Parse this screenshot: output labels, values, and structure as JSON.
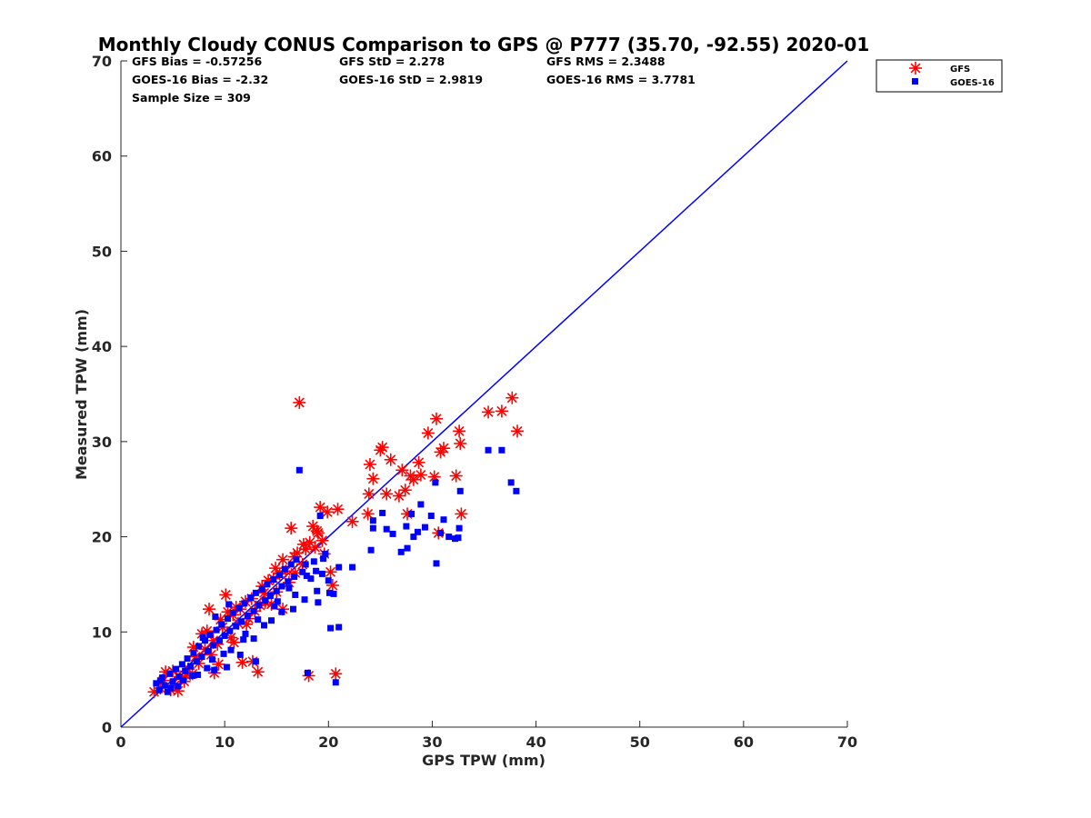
{
  "chart_data": {
    "type": "scatter",
    "title": "Monthly Cloudy CONUS Comparison to GPS @ P777 (35.70, -92.55) 2020-01",
    "xlabel": "GPS TPW (mm)",
    "ylabel": "Measured TPW (mm)",
    "xlim": [
      0,
      70
    ],
    "ylim": [
      0,
      70
    ],
    "xticks": [
      0,
      10,
      20,
      30,
      40,
      50,
      60,
      70
    ],
    "yticks": [
      0,
      10,
      20,
      30,
      40,
      50,
      60,
      70
    ],
    "grid": false,
    "legend_position": "top-right-outside",
    "stats": {
      "gfs_bias": "GFS Bias = -0.57256",
      "gfs_std": "GFS StD = 2.278",
      "gfs_rms": "GFS RMS = 2.3488",
      "goes_bias": "GOES-16 Bias = -2.32",
      "goes_std": "GOES-16 StD = 2.9819",
      "goes_rms": "GOES-16 RMS = 3.7781",
      "sample_size": "Sample Size = 309"
    },
    "reference_line": {
      "name": "1:1",
      "x": [
        0,
        70
      ],
      "y": [
        0,
        70
      ],
      "color": "#0000ff"
    },
    "series": [
      {
        "name": "GFS",
        "marker": "asterisk",
        "color": "#ff0000",
        "points": [
          [
            3.2,
            3.7
          ],
          [
            3.8,
            4.1
          ],
          [
            4.1,
            4.9
          ],
          [
            4.3,
            5.8
          ],
          [
            4.8,
            3.9
          ],
          [
            5.2,
            4.4
          ],
          [
            5.5,
            3.8
          ],
          [
            5.7,
            5.3
          ],
          [
            6.1,
            4.8
          ],
          [
            6.5,
            6.1
          ],
          [
            6.9,
            5.6
          ],
          [
            7.2,
            7.4
          ],
          [
            7.5,
            6.7
          ],
          [
            7.8,
            9.8
          ],
          [
            8.1,
            8.2
          ],
          [
            8.3,
            10.1
          ],
          [
            8.5,
            12.4
          ],
          [
            8.7,
            7.6
          ],
          [
            9.0,
            5.7
          ],
          [
            9.3,
            8.7
          ],
          [
            9.6,
            11.3
          ],
          [
            9.8,
            10.5
          ],
          [
            10.1,
            13.9
          ],
          [
            10.3,
            12.1
          ],
          [
            10.6,
            9.4
          ],
          [
            10.8,
            11.8
          ],
          [
            11.1,
            12.6
          ],
          [
            11.3,
            10.9
          ],
          [
            11.7,
            6.8
          ],
          [
            12.0,
            13.2
          ],
          [
            12.3,
            11.4
          ],
          [
            12.6,
            13.5
          ],
          [
            12.9,
            12.2
          ],
          [
            13.2,
            5.8
          ],
          [
            13.4,
            12.8
          ],
          [
            13.6,
            14.8
          ],
          [
            13.9,
            13.1
          ],
          [
            14.2,
            15.4
          ],
          [
            14.5,
            12.9
          ],
          [
            14.7,
            15.6
          ],
          [
            15.0,
            14.2
          ],
          [
            15.3,
            16.1
          ],
          [
            15.6,
            17.6
          ],
          [
            15.9,
            16.4
          ],
          [
            16.2,
            15.2
          ],
          [
            16.4,
            20.9
          ],
          [
            16.7,
            17.9
          ],
          [
            17.0,
            18.3
          ],
          [
            17.2,
            34.1
          ],
          [
            17.5,
            17.1
          ],
          [
            17.8,
            18.7
          ],
          [
            18.1,
            5.4
          ],
          [
            18.2,
            19.4
          ],
          [
            18.5,
            21.1
          ],
          [
            18.7,
            18.9
          ],
          [
            19.0,
            20.4
          ],
          [
            19.2,
            23.1
          ],
          [
            19.4,
            19.6
          ],
          [
            19.6,
            18.2
          ],
          [
            19.9,
            22.6
          ],
          [
            20.2,
            16.3
          ],
          [
            20.4,
            14.9
          ],
          [
            20.7,
            5.6
          ],
          [
            20.9,
            22.9
          ],
          [
            22.3,
            21.6
          ],
          [
            23.8,
            22.4
          ],
          [
            23.9,
            24.5
          ],
          [
            24.0,
            27.6
          ],
          [
            24.3,
            26.1
          ],
          [
            25.0,
            29.1
          ],
          [
            25.2,
            29.4
          ],
          [
            25.6,
            24.5
          ],
          [
            26.0,
            28.1
          ],
          [
            26.8,
            24.3
          ],
          [
            27.1,
            27.0
          ],
          [
            27.4,
            24.9
          ],
          [
            27.6,
            22.4
          ],
          [
            27.9,
            26.4
          ],
          [
            28.2,
            26.0
          ],
          [
            28.7,
            27.8
          ],
          [
            28.9,
            26.5
          ],
          [
            29.6,
            30.9
          ],
          [
            30.2,
            26.3
          ],
          [
            30.4,
            32.4
          ],
          [
            30.6,
            20.4
          ],
          [
            30.8,
            28.9
          ],
          [
            31.1,
            29.3
          ],
          [
            32.3,
            26.4
          ],
          [
            32.6,
            31.1
          ],
          [
            32.7,
            29.8
          ],
          [
            32.8,
            22.4
          ],
          [
            35.4,
            33.1
          ],
          [
            36.7,
            33.2
          ],
          [
            37.7,
            34.6
          ],
          [
            38.2,
            31.1
          ],
          [
            5.0,
            5.9
          ],
          [
            6.3,
            5.4
          ],
          [
            7.0,
            8.4
          ],
          [
            8.9,
            9.1
          ],
          [
            11.5,
            12.4
          ],
          [
            12.1,
            10.8
          ],
          [
            13.8,
            14.1
          ],
          [
            14.9,
            16.7
          ],
          [
            16.8,
            16.2
          ],
          [
            17.6,
            19.2
          ],
          [
            18.9,
            20.6
          ],
          [
            9.4,
            6.6
          ],
          [
            10.9,
            8.9
          ],
          [
            12.7,
            6.9
          ],
          [
            15.6,
            12.4
          ]
        ]
      },
      {
        "name": "GOES-16",
        "marker": "square",
        "color": "#0000ff",
        "points": [
          [
            3.4,
            4.6
          ],
          [
            3.7,
            3.9
          ],
          [
            4.0,
            5.2
          ],
          [
            4.2,
            4.4
          ],
          [
            4.5,
            3.7
          ],
          [
            4.7,
            5.6
          ],
          [
            5.0,
            4.8
          ],
          [
            5.3,
            6.1
          ],
          [
            5.6,
            5.3
          ],
          [
            5.9,
            6.6
          ],
          [
            6.2,
            5.9
          ],
          [
            6.4,
            7.2
          ],
          [
            6.7,
            6.4
          ],
          [
            7.0,
            7.8
          ],
          [
            7.3,
            6.9
          ],
          [
            7.5,
            8.5
          ],
          [
            7.8,
            7.4
          ],
          [
            8.1,
            9.1
          ],
          [
            8.4,
            8.0
          ],
          [
            8.6,
            9.7
          ],
          [
            8.9,
            8.6
          ],
          [
            9.2,
            10.2
          ],
          [
            9.5,
            9.1
          ],
          [
            9.7,
            10.8
          ],
          [
            10.0,
            9.6
          ],
          [
            10.3,
            11.4
          ],
          [
            10.5,
            10.1
          ],
          [
            10.8,
            12.0
          ],
          [
            11.1,
            10.6
          ],
          [
            11.4,
            12.5
          ],
          [
            11.6,
            11.1
          ],
          [
            11.9,
            13.0
          ],
          [
            12.2,
            11.7
          ],
          [
            12.5,
            13.6
          ],
          [
            12.8,
            12.2
          ],
          [
            13.0,
            14.1
          ],
          [
            13.3,
            12.8
          ],
          [
            13.6,
            14.5
          ],
          [
            13.9,
            13.3
          ],
          [
            14.1,
            15.0
          ],
          [
            14.4,
            13.8
          ],
          [
            14.7,
            15.5
          ],
          [
            15.0,
            14.3
          ],
          [
            15.3,
            16.0
          ],
          [
            15.5,
            14.8
          ],
          [
            15.8,
            16.6
          ],
          [
            16.1,
            15.3
          ],
          [
            16.4,
            17.1
          ],
          [
            16.7,
            15.8
          ],
          [
            16.9,
            17.6
          ],
          [
            17.2,
            27.0
          ],
          [
            17.5,
            16.3
          ],
          [
            17.8,
            17.1
          ],
          [
            18.0,
            5.7
          ],
          [
            18.3,
            15.6
          ],
          [
            18.6,
            17.4
          ],
          [
            18.9,
            14.3
          ],
          [
            19.2,
            22.2
          ],
          [
            19.4,
            16.1
          ],
          [
            19.7,
            18.2
          ],
          [
            20.0,
            15.4
          ],
          [
            20.2,
            10.4
          ],
          [
            20.5,
            14.0
          ],
          [
            20.7,
            4.7
          ],
          [
            21.0,
            10.5
          ],
          [
            21.0,
            16.8
          ],
          [
            22.3,
            16.8
          ],
          [
            24.1,
            18.6
          ],
          [
            24.3,
            20.9
          ],
          [
            24.3,
            21.7
          ],
          [
            25.2,
            22.5
          ],
          [
            25.6,
            20.8
          ],
          [
            26.2,
            20.3
          ],
          [
            27.0,
            18.4
          ],
          [
            27.5,
            21.1
          ],
          [
            27.6,
            18.8
          ],
          [
            28.0,
            22.4
          ],
          [
            28.2,
            20.0
          ],
          [
            28.6,
            20.5
          ],
          [
            28.9,
            23.4
          ],
          [
            29.3,
            21.0
          ],
          [
            29.9,
            22.2
          ],
          [
            30.3,
            25.7
          ],
          [
            30.4,
            17.2
          ],
          [
            30.8,
            20.4
          ],
          [
            31.1,
            21.8
          ],
          [
            31.6,
            20.0
          ],
          [
            32.2,
            19.8
          ],
          [
            32.5,
            19.9
          ],
          [
            32.6,
            20.9
          ],
          [
            32.7,
            24.8
          ],
          [
            35.4,
            29.1
          ],
          [
            36.7,
            29.1
          ],
          [
            37.6,
            25.7
          ],
          [
            38.1,
            24.8
          ],
          [
            11.5,
            7.6
          ],
          [
            12.8,
            9.3
          ],
          [
            9.0,
            6.0
          ],
          [
            10.2,
            6.3
          ],
          [
            13.0,
            6.9
          ],
          [
            6.0,
            4.9
          ],
          [
            7.4,
            5.5
          ],
          [
            8.8,
            7.1
          ],
          [
            14.5,
            11.2
          ],
          [
            15.5,
            12.1
          ],
          [
            16.6,
            12.4
          ],
          [
            17.7,
            13.4
          ],
          [
            19.0,
            13.1
          ],
          [
            20.1,
            14.1
          ],
          [
            13.8,
            10.7
          ],
          [
            12.0,
            9.8
          ],
          [
            10.6,
            8.1
          ],
          [
            15.1,
            13.2
          ],
          [
            16.2,
            14.6
          ],
          [
            18.8,
            16.4
          ],
          [
            19.5,
            17.7
          ],
          [
            17.9,
            15.9
          ],
          [
            16.8,
            13.9
          ],
          [
            14.8,
            12.7
          ],
          [
            13.2,
            11.3
          ],
          [
            11.8,
            9.2
          ],
          [
            9.9,
            7.7
          ],
          [
            8.3,
            6.2
          ],
          [
            6.9,
            5.4
          ],
          [
            5.5,
            4.3
          ],
          [
            4.8,
            4.1
          ],
          [
            3.8,
            4.9
          ],
          [
            7.9,
            9.4
          ],
          [
            9.1,
            11.6
          ],
          [
            10.4,
            12.9
          ]
        ]
      }
    ]
  }
}
